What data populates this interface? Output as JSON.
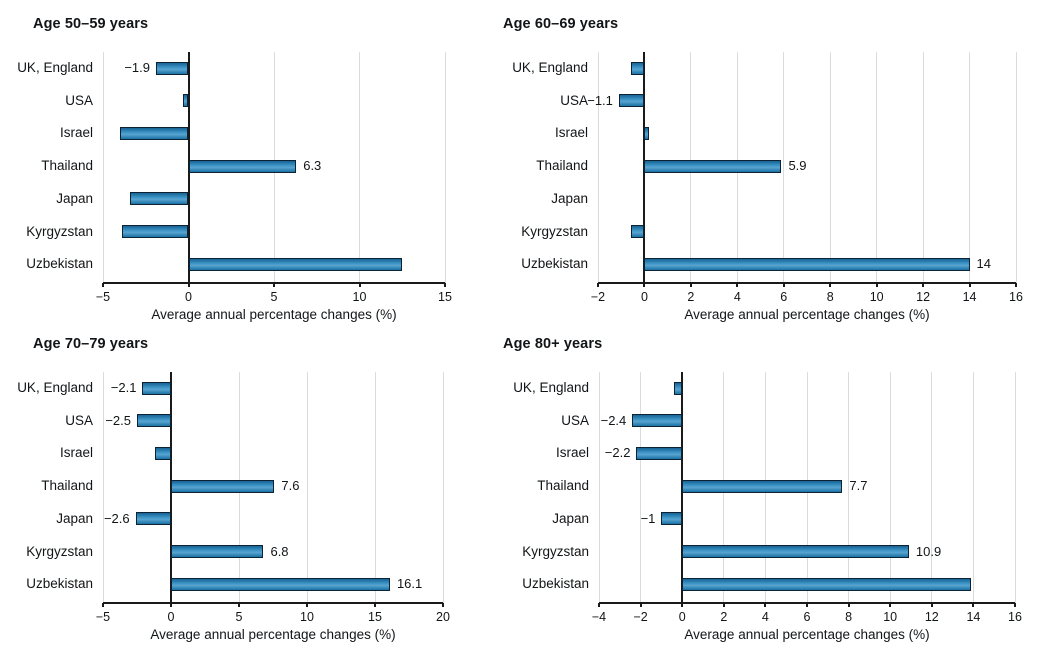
{
  "figure": {
    "background": "#ffffff",
    "bar_fill": "#1f85bf",
    "bar_border": "#0d2233",
    "grid_color": "#d9dcde",
    "axis_color": "#1a1a1a",
    "text_color": "#121517",
    "xlabel": "Average annual percentage changes (%)"
  },
  "chart_data": [
    {
      "type": "bar",
      "orientation": "horizontal",
      "title": "Age 50–59 years",
      "xlabel": "Average annual percentage changes (%)",
      "xlim": [
        -5,
        15
      ],
      "xticks": [
        -5,
        0,
        5,
        10,
        15
      ],
      "xtick_labels": [
        "−5",
        "0",
        "5",
        "10",
        "15"
      ],
      "grid": true,
      "legend": "none",
      "categories": [
        "UK, England",
        "USA",
        "Israel",
        "Thailand",
        "Japan",
        "Kyrgyzstan",
        "Uzbekistan"
      ],
      "values": [
        -1.9,
        -0.3,
        -4.0,
        6.3,
        -3.4,
        -3.9,
        12.5
      ],
      "value_labels": [
        "−1.9",
        null,
        null,
        "6.3",
        null,
        null,
        null
      ]
    },
    {
      "type": "bar",
      "orientation": "horizontal",
      "title": "Age 60–69 years",
      "xlabel": "Average annual percentage changes (%)",
      "xlim": [
        -2,
        16
      ],
      "xticks": [
        -2,
        0,
        2,
        4,
        6,
        8,
        10,
        12,
        14,
        16
      ],
      "xtick_labels": [
        "−2",
        "0",
        "2",
        "4",
        "6",
        "8",
        "10",
        "12",
        "14",
        "16"
      ],
      "grid": true,
      "legend": "none",
      "categories": [
        "UK, England",
        "USA",
        "Israel",
        "Thailand",
        "Japan",
        "Kyrgyzstan",
        "Uzbekistan"
      ],
      "values": [
        -0.6,
        -1.1,
        0.2,
        5.9,
        0,
        -0.6,
        14
      ],
      "value_labels": [
        null,
        "−1.1",
        null,
        "5.9",
        null,
        null,
        "14"
      ]
    },
    {
      "type": "bar",
      "orientation": "horizontal",
      "title": "Age 70–79 years",
      "xlabel": "Average annual percentage changes (%)",
      "xlim": [
        -5,
        20
      ],
      "xticks": [
        -5,
        0,
        5,
        10,
        15,
        20
      ],
      "xtick_labels": [
        "−5",
        "0",
        "5",
        "10",
        "15",
        "20"
      ],
      "grid": true,
      "legend": "none",
      "categories": [
        "UK, England",
        "USA",
        "Israel",
        "Thailand",
        "Japan",
        "Kyrgyzstan",
        "Uzbekistan"
      ],
      "values": [
        -2.1,
        -2.5,
        -1.2,
        7.6,
        -2.6,
        6.8,
        16.1
      ],
      "value_labels": [
        "−2.1",
        "−2.5",
        null,
        "7.6",
        "−2.6",
        "6.8",
        "16.1"
      ]
    },
    {
      "type": "bar",
      "orientation": "horizontal",
      "title": "Age 80+ years",
      "xlabel": "Average annual percentage changes (%)",
      "xlim": [
        -4,
        16
      ],
      "xticks": [
        -4,
        -2,
        0,
        2,
        4,
        6,
        8,
        10,
        12,
        14,
        16
      ],
      "xtick_labels": [
        "−4",
        "−2",
        "0",
        "2",
        "4",
        "6",
        "8",
        "10",
        "12",
        "14",
        "16"
      ],
      "grid": true,
      "legend": "none",
      "categories": [
        "UK, England",
        "USA",
        "Israel",
        "Thailand",
        "Japan",
        "Kyrgyzstan",
        "Uzbekistan"
      ],
      "values": [
        -0.4,
        -2.4,
        -2.2,
        7.7,
        -1,
        10.9,
        13.9
      ],
      "value_labels": [
        null,
        "−2.4",
        "−2.2",
        "7.7",
        "−1",
        "10.9",
        null
      ]
    }
  ]
}
